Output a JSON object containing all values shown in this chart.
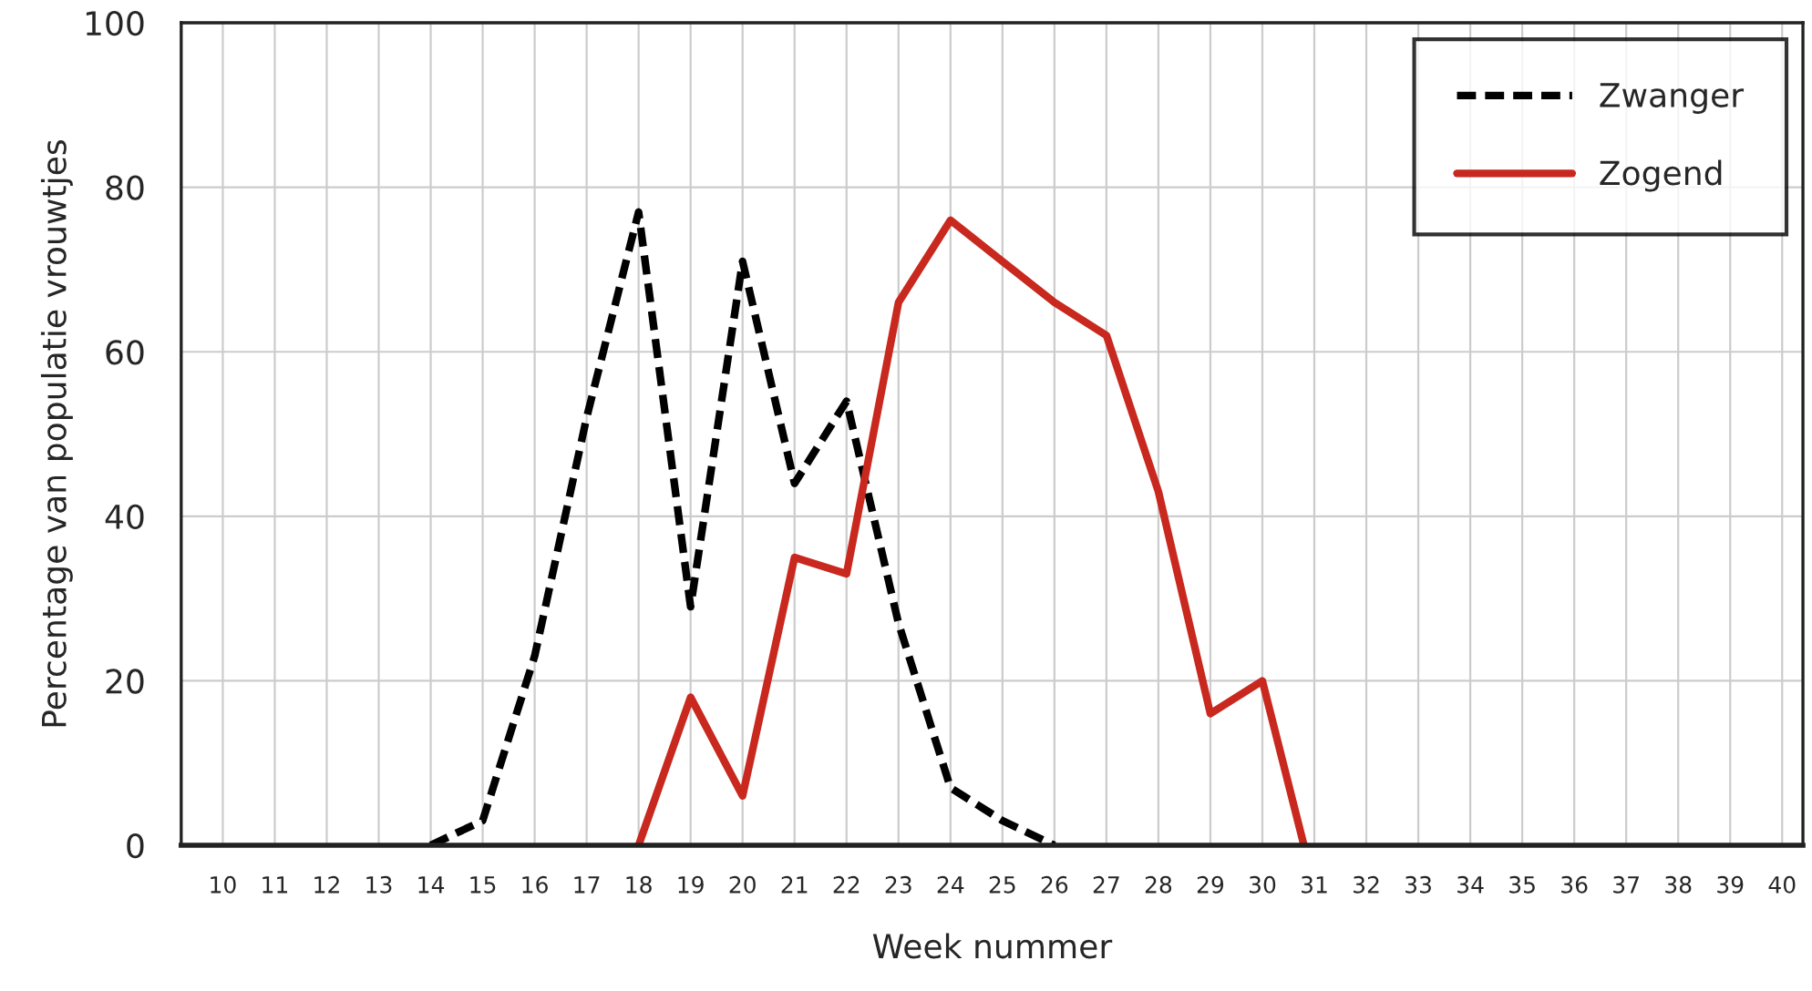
{
  "chart_data": {
    "type": "line",
    "xlabel": "Week nummer",
    "ylabel": "Percentage van populatie vrouwtjes",
    "xlim": [
      9.2,
      40.4
    ],
    "xticks": [
      10,
      11,
      12,
      13,
      14,
      15,
      16,
      17,
      18,
      19,
      20,
      21,
      22,
      23,
      24,
      25,
      26,
      27,
      28,
      29,
      30,
      31,
      32,
      33,
      34,
      35,
      36,
      37,
      38,
      39,
      40
    ],
    "ylim": [
      0,
      100
    ],
    "yticks": [
      0,
      20,
      40,
      60,
      80,
      100
    ],
    "grid": true,
    "legend": "top right",
    "series": [
      {
        "name": "Zwanger",
        "color": "#000000",
        "line_style": "dashed",
        "x": [
          14,
          15,
          16,
          17,
          18,
          19,
          20,
          21,
          22,
          23,
          24,
          25,
          26
        ],
        "values": [
          0,
          3,
          23,
          52,
          77,
          29,
          71,
          44,
          54,
          27,
          7,
          3,
          0
        ]
      },
      {
        "name": "Zogend",
        "color": "#c8281e",
        "line_style": "solid",
        "x": [
          18,
          19,
          20,
          21,
          22,
          23,
          24,
          25,
          26,
          27,
          28,
          29,
          30,
          30.8
        ],
        "values": [
          0,
          18,
          6,
          35,
          33,
          66,
          76,
          71,
          66,
          62,
          43,
          16,
          20,
          0
        ]
      }
    ]
  }
}
